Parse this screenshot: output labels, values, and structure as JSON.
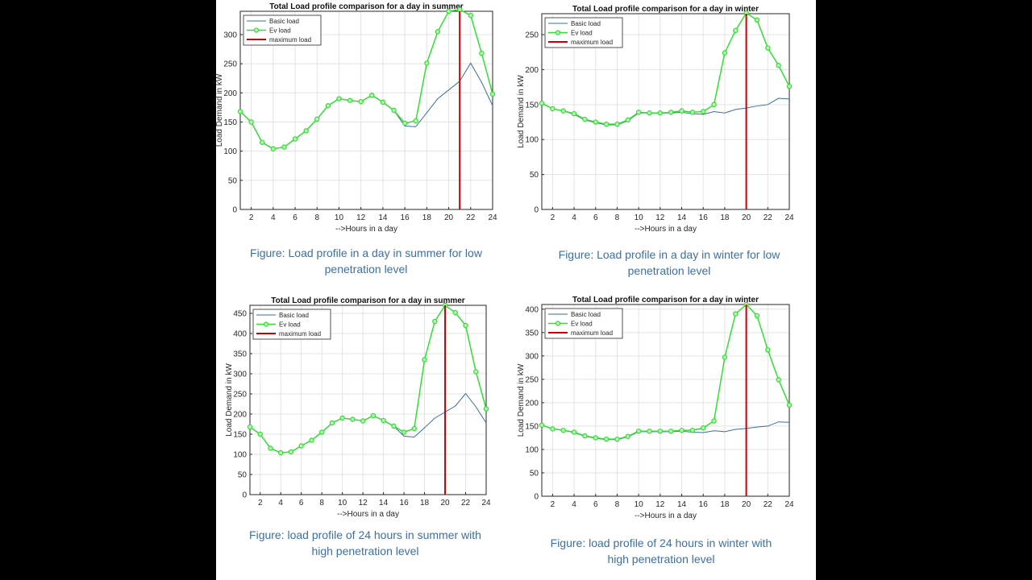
{
  "colors": {
    "basic": "#3a6f9a",
    "ev": "#33dd33",
    "max": "#cc0000",
    "caption": "#3f6f9f"
  },
  "legend_labels": [
    "Basic load",
    "Ev load",
    "maximum load"
  ],
  "chart_data": [
    {
      "type": "line",
      "title": "Total Load profile comparison for a day in summer",
      "xlabel": "-->Hours in a day",
      "ylabel": "Load Demand in kW",
      "xlim": [
        1,
        24
      ],
      "ylim": [
        0,
        340
      ],
      "xticks": [
        2,
        4,
        6,
        8,
        10,
        12,
        14,
        16,
        18,
        20,
        22,
        24
      ],
      "yticks": [
        0,
        50,
        100,
        150,
        200,
        250,
        300
      ],
      "grid": true,
      "legend_position": "top-left",
      "max_line_x": 21,
      "x": [
        1,
        2,
        3,
        4,
        5,
        6,
        7,
        8,
        9,
        10,
        11,
        12,
        13,
        14,
        15,
        16,
        17,
        18,
        19,
        20,
        21,
        22,
        23,
        24
      ],
      "series": [
        {
          "name": "Basic load",
          "values": [
            168,
            150,
            115,
            104,
            107,
            121,
            135,
            155,
            178,
            190,
            187,
            185,
            196,
            184,
            170,
            143,
            142,
            166,
            190,
            205,
            220,
            251,
            218,
            178
          ]
        },
        {
          "name": "Ev load",
          "values": [
            168,
            150,
            115,
            104,
            107,
            121,
            135,
            155,
            178,
            190,
            187,
            185,
            196,
            184,
            170,
            148,
            152,
            251,
            305,
            340,
            343,
            333,
            268,
            198
          ]
        }
      ],
      "caption": "Figure: Load profile in a day in summer for low penetration level"
    },
    {
      "type": "line",
      "title": "Total Load profile comparison for a day in winter",
      "xlabel": "-->Hours in a day",
      "ylabel": "Load Demand in kW",
      "xlim": [
        1,
        24
      ],
      "ylim": [
        0,
        280
      ],
      "xticks": [
        2,
        4,
        6,
        8,
        10,
        12,
        14,
        16,
        18,
        20,
        22,
        24
      ],
      "yticks": [
        0,
        50,
        100,
        150,
        200,
        250
      ],
      "grid": true,
      "legend_position": "top-left",
      "max_line_x": 20,
      "x": [
        1,
        2,
        3,
        4,
        5,
        6,
        7,
        8,
        9,
        10,
        11,
        12,
        13,
        14,
        15,
        16,
        17,
        18,
        19,
        20,
        21,
        22,
        23,
        24
      ],
      "series": [
        {
          "name": "Basic load",
          "values": [
            152,
            144,
            141,
            136,
            128,
            124,
            121,
            121,
            127,
            138,
            138,
            138,
            138,
            139,
            137,
            136,
            140,
            138,
            143,
            145,
            148,
            150,
            159,
            158
          ]
        },
        {
          "name": "Ev load",
          "values": [
            152,
            144,
            141,
            137,
            129,
            125,
            122,
            122,
            128,
            139,
            138,
            138,
            139,
            141,
            139,
            140,
            150,
            224,
            256,
            281,
            271,
            231,
            206,
            176
          ]
        }
      ],
      "caption": "Figure:  Load profile in a day in winter for low penetration level"
    },
    {
      "type": "line",
      "title": "Total Load profile comparison for a day in summer",
      "xlabel": "-->Hours in a day",
      "ylabel": "Load Demand in kW",
      "xlim": [
        1,
        24
      ],
      "ylim": [
        0,
        470
      ],
      "xticks": [
        2,
        4,
        6,
        8,
        10,
        12,
        14,
        16,
        18,
        20,
        22,
        24
      ],
      "yticks": [
        0,
        50,
        100,
        150,
        200,
        250,
        300,
        350,
        400,
        450
      ],
      "grid": true,
      "legend_position": "top-left",
      "max_line_x": 20,
      "x": [
        1,
        2,
        3,
        4,
        5,
        6,
        7,
        8,
        9,
        10,
        11,
        12,
        13,
        14,
        15,
        16,
        17,
        18,
        19,
        20,
        21,
        22,
        23,
        24
      ],
      "series": [
        {
          "name": "Basic load",
          "values": [
            168,
            150,
            115,
            104,
            106,
            121,
            135,
            155,
            178,
            190,
            187,
            183,
            196,
            184,
            170,
            145,
            143,
            166,
            190,
            205,
            220,
            251,
            218,
            178
          ]
        },
        {
          "name": "Ev load",
          "values": [
            168,
            150,
            115,
            104,
            106,
            121,
            135,
            155,
            178,
            190,
            187,
            183,
            196,
            184,
            170,
            155,
            164,
            335,
            430,
            470,
            452,
            420,
            305,
            213
          ]
        }
      ],
      "caption": "Figure: load profile of 24 hours in summer with high penetration level"
    },
    {
      "type": "line",
      "title": "Total Load profile comparison for a day in winter",
      "xlabel": "-->Hours in a day",
      "ylabel": "Load Demand in kW",
      "xlim": [
        1,
        24
      ],
      "ylim": [
        0,
        410
      ],
      "xticks": [
        2,
        4,
        6,
        8,
        10,
        12,
        14,
        16,
        18,
        20,
        22,
        24
      ],
      "yticks": [
        0,
        50,
        100,
        150,
        200,
        250,
        300,
        350,
        400
      ],
      "grid": true,
      "legend_position": "top-left",
      "max_line_x": 20,
      "x": [
        1,
        2,
        3,
        4,
        5,
        6,
        7,
        8,
        9,
        10,
        11,
        12,
        13,
        14,
        15,
        16,
        17,
        18,
        19,
        20,
        21,
        22,
        23,
        24
      ],
      "series": [
        {
          "name": "Basic load",
          "values": [
            152,
            144,
            141,
            136,
            128,
            124,
            121,
            121,
            127,
            138,
            138,
            138,
            138,
            139,
            137,
            136,
            140,
            138,
            143,
            145,
            148,
            150,
            159,
            158
          ]
        },
        {
          "name": "Ev load",
          "values": [
            152,
            144,
            141,
            137,
            129,
            125,
            122,
            122,
            128,
            139,
            139,
            139,
            139,
            141,
            141,
            146,
            161,
            297,
            390,
            410,
            386,
            313,
            249,
            195
          ]
        }
      ],
      "caption": "Figure: load profile of 24 hours in winter with high penetration level"
    }
  ]
}
